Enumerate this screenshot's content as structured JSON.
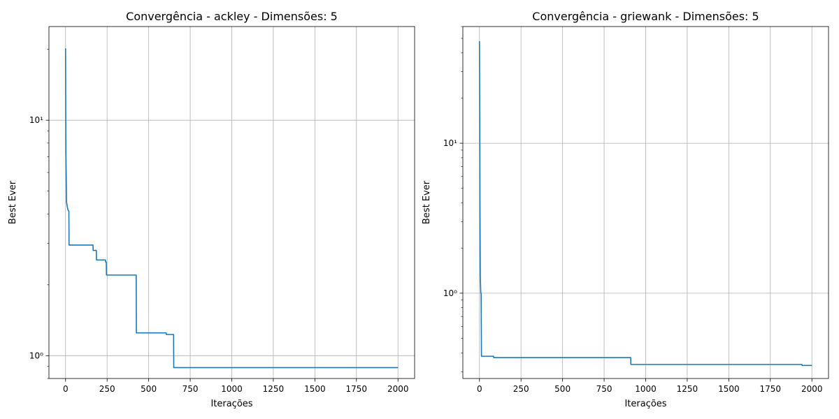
{
  "chart_data": [
    {
      "type": "line",
      "title": "Convergência - ackley - Dimensões: 5",
      "xlabel": "Iterações",
      "ylabel": "Best Ever",
      "yscale": "log",
      "xlim": [
        -100,
        2100
      ],
      "ylim": [
        0.8,
        25
      ],
      "xticks": [
        0,
        250,
        500,
        750,
        1000,
        1250,
        1500,
        1750,
        2000
      ],
      "xtick_labels": [
        "0",
        "250",
        "500",
        "750",
        "1000",
        "1250",
        "1500",
        "1750",
        "2000"
      ],
      "yticks": [
        1,
        10
      ],
      "ytick_labels": [
        "10⁰",
        "10¹"
      ],
      "grid": true,
      "color": "#1f77b4",
      "series": [
        {
          "x": [
            0,
            1,
            2,
            4,
            6,
            10,
            15,
            20,
            21,
            165,
            166,
            185,
            186,
            240,
            241,
            245,
            246,
            425,
            426,
            605,
            606,
            650,
            651,
            2000
          ],
          "y": [
            20.2,
            10.5,
            7.2,
            5.8,
            4.5,
            4.3,
            4.15,
            4.1,
            2.95,
            2.95,
            2.8,
            2.8,
            2.55,
            2.55,
            2.5,
            2.5,
            2.2,
            2.2,
            1.25,
            1.25,
            1.23,
            1.23,
            0.89,
            0.89
          ]
        }
      ]
    },
    {
      "type": "line",
      "title": "Convergência - griewank - Dimensões: 5",
      "xlabel": "Iterações",
      "ylabel": "Best Ever",
      "yscale": "log",
      "xlim": [
        -100,
        2100
      ],
      "ylim": [
        0.27,
        60
      ],
      "xticks": [
        0,
        250,
        500,
        750,
        1000,
        1250,
        1500,
        1750,
        2000
      ],
      "xtick_labels": [
        "0",
        "250",
        "500",
        "750",
        "1000",
        "1250",
        "1500",
        "1750",
        "2000"
      ],
      "yticks": [
        1,
        10
      ],
      "ytick_labels": [
        "10⁰",
        "10¹"
      ],
      "grid": true,
      "color": "#1f77b4",
      "series": [
        {
          "x": [
            0,
            2,
            3,
            5,
            8,
            10,
            12,
            85,
            86,
            910,
            911,
            1940,
            1941,
            2000
          ],
          "y": [
            48,
            12,
            4,
            1.3,
            1.0,
            1.0,
            0.38,
            0.38,
            0.372,
            0.372,
            0.335,
            0.335,
            0.33,
            0.33
          ]
        }
      ]
    }
  ]
}
